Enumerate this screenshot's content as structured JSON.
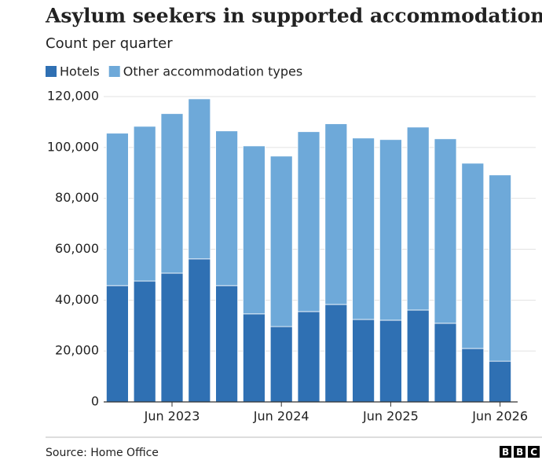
{
  "chart_data": {
    "type": "stacked_bar",
    "title": "Asylum seekers in supported accommodation",
    "subtitle": "Count per quarter",
    "categories": [
      null,
      null,
      "Jun 2023",
      null,
      null,
      null,
      "Jun 2024",
      null,
      null,
      null,
      "Jun 2025",
      null,
      null,
      null,
      "Jun 2026"
    ],
    "series": [
      {
        "name": "Hotels",
        "color": "#2f70b3",
        "values": [
          45700,
          47500,
          50600,
          56200,
          45700,
          34600,
          29600,
          35500,
          38300,
          32400,
          32100,
          36100,
          30900,
          21000,
          16000
        ]
      },
      {
        "name": "Other accommodation types",
        "color": "#6ea9d9",
        "values": [
          59900,
          60800,
          62700,
          62900,
          60800,
          66000,
          67000,
          70700,
          71000,
          71300,
          71000,
          71900,
          72500,
          72800,
          73200
        ]
      }
    ],
    "ylim": [
      0,
      120000
    ],
    "yticks": [
      0,
      {
        "value": 20000,
        "label": "20,000"
      },
      {
        "value": 40000,
        "label": "40,000"
      },
      {
        "value": 60000,
        "label": "60,000"
      },
      {
        "value": 80000,
        "label": "80,000"
      },
      {
        "value": 100000,
        "label": "100,000"
      },
      {
        "value": 120000,
        "label": "120,000"
      }
    ],
    "grid": true,
    "legend": "top-left",
    "source": "Source: Home Office",
    "logo": "BBC"
  }
}
